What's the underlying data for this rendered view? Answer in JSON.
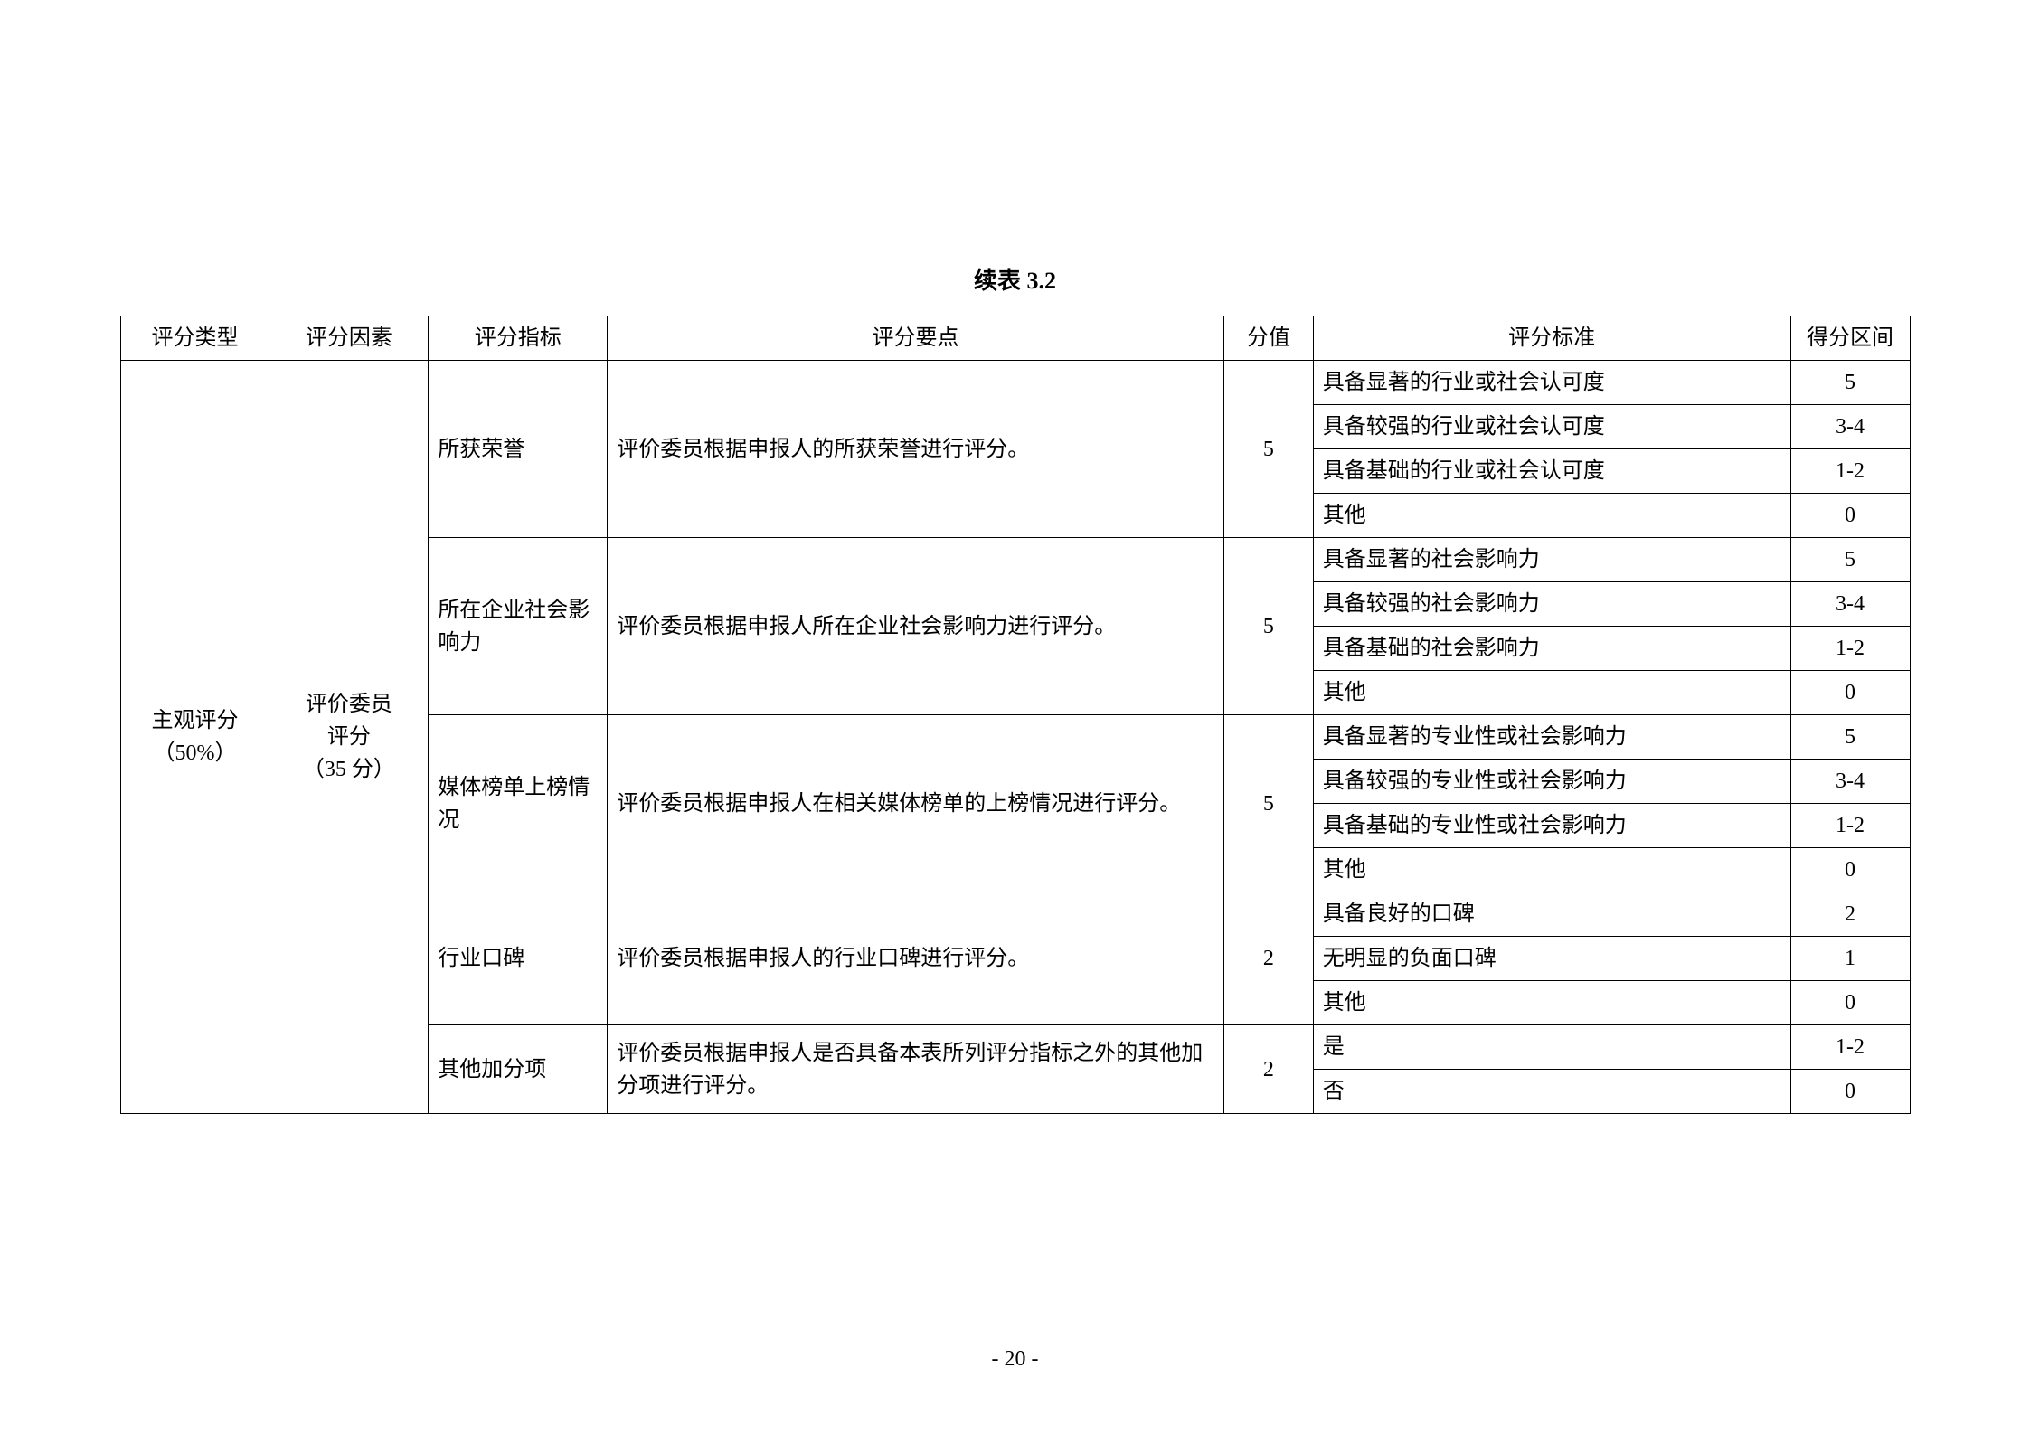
{
  "title": "续表 3.2",
  "pageNumber": "- 20 -",
  "headers": {
    "type": "评分类型",
    "factor": "评分因素",
    "index": "评分指标",
    "point": "评分要点",
    "value": "分值",
    "standard": "评分标准",
    "range": "得分区间"
  },
  "typeCell": {
    "line1": "主观评分",
    "line2": "（50%）"
  },
  "factorCell": {
    "line1": "评价委员",
    "line2": "评分",
    "line3": "（35 分）"
  },
  "groups": [
    {
      "index": "所获荣誉",
      "point": "评价委员根据申报人的所获荣誉进行评分。",
      "value": "5",
      "standards": [
        {
          "text": "具备显著的行业或社会认可度",
          "range": "5"
        },
        {
          "text": "具备较强的行业或社会认可度",
          "range": "3-4"
        },
        {
          "text": "具备基础的行业或社会认可度",
          "range": "1-2"
        },
        {
          "text": "其他",
          "range": "0"
        }
      ]
    },
    {
      "index": "所在企业社会影响力",
      "point": "评价委员根据申报人所在企业社会影响力进行评分。",
      "value": "5",
      "standards": [
        {
          "text": "具备显著的社会影响力",
          "range": "5"
        },
        {
          "text": "具备较强的社会影响力",
          "range": "3-4"
        },
        {
          "text": "具备基础的社会影响力",
          "range": "1-2"
        },
        {
          "text": "其他",
          "range": "0"
        }
      ]
    },
    {
      "index": "媒体榜单上榜情况",
      "point": "评价委员根据申报人在相关媒体榜单的上榜情况进行评分。",
      "value": "5",
      "standards": [
        {
          "text": "具备显著的专业性或社会影响力",
          "range": "5"
        },
        {
          "text": "具备较强的专业性或社会影响力",
          "range": "3-4"
        },
        {
          "text": "具备基础的专业性或社会影响力",
          "range": "1-2"
        },
        {
          "text": "其他",
          "range": "0"
        }
      ]
    },
    {
      "index": "行业口碑",
      "point": "评价委员根据申报人的行业口碑进行评分。",
      "value": "2",
      "standards": [
        {
          "text": "具备良好的口碑",
          "range": "2"
        },
        {
          "text": "无明显的负面口碑",
          "range": "1"
        },
        {
          "text": "其他",
          "range": "0"
        }
      ]
    },
    {
      "index": "其他加分项",
      "point": "评价委员根据申报人是否具备本表所列评分指标之外的其他加分项进行评分。",
      "value": "2",
      "standards": [
        {
          "text": "是",
          "range": "1-2"
        },
        {
          "text": "否",
          "range": "0"
        }
      ]
    }
  ],
  "style": {
    "fontSize": 24,
    "titleFontSize": 26,
    "borderColor": "#000000",
    "background": "#ffffff",
    "textColor": "#000000"
  }
}
